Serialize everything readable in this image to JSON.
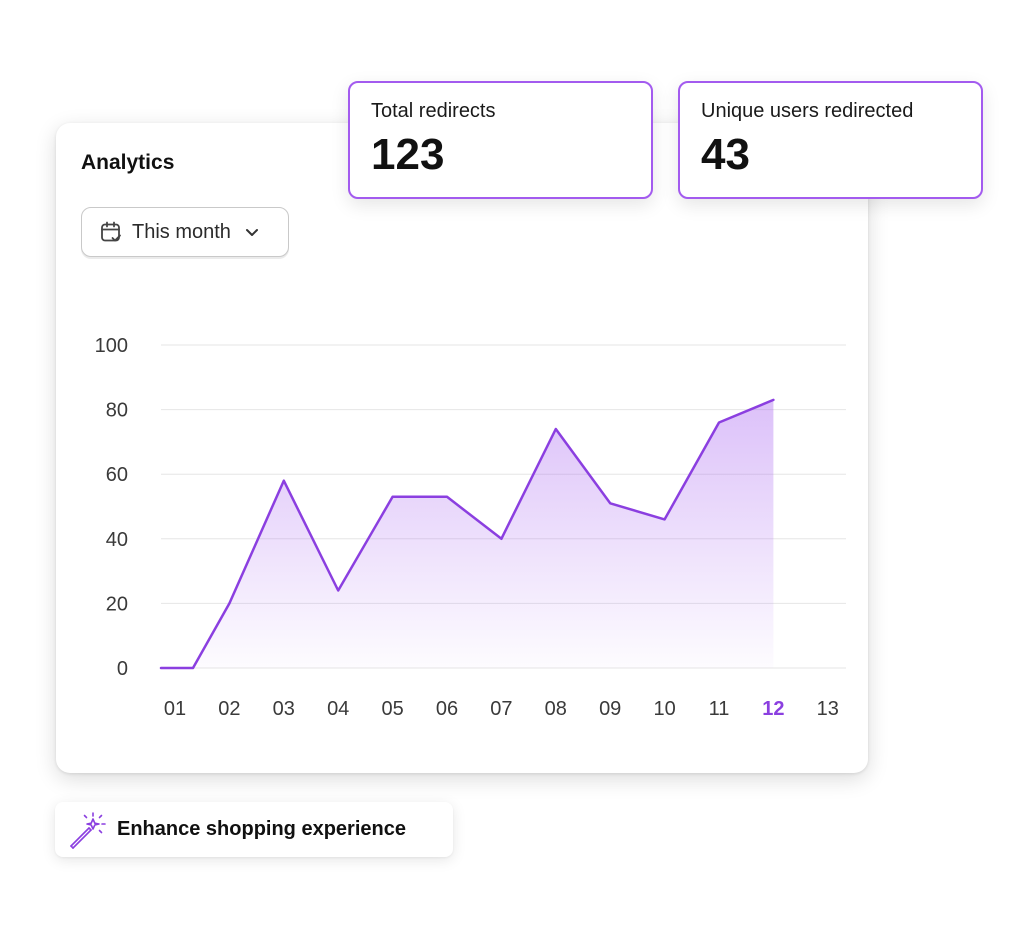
{
  "analytics_card": {
    "title": "Analytics",
    "range_selector": {
      "label": "This month",
      "icon": "calendar-check-icon",
      "dropdown_icon": "chevron-down-icon"
    }
  },
  "stats": [
    {
      "label": "Total redirects",
      "value": "123"
    },
    {
      "label": "Unique users redirected",
      "value": "43"
    }
  ],
  "enhance": {
    "label": "Enhance shopping experience",
    "icon": "magic-wand-icon"
  },
  "colors": {
    "accent": "#8b3fe0",
    "accent_border": "#a35bef",
    "grid": "#e6e6e6"
  },
  "chart_data": {
    "type": "area",
    "x": [
      "01",
      "02",
      "03",
      "04",
      "05",
      "06",
      "07",
      "08",
      "09",
      "10",
      "11",
      "12",
      "13"
    ],
    "highlighted_x": "12",
    "y_ticks": [
      "0",
      "20",
      "40",
      "60",
      "80",
      "100"
    ],
    "ylim": [
      0,
      100
    ],
    "grid": true,
    "series": [
      {
        "points": [
          [
            "01",
            0
          ],
          [
            "01",
            0
          ],
          [
            "02",
            20
          ],
          [
            "03",
            58
          ],
          [
            "04",
            24
          ],
          [
            "05",
            53
          ],
          [
            "06",
            53
          ],
          [
            "07",
            40
          ],
          [
            "08",
            74
          ],
          [
            "09",
            51
          ],
          [
            "10",
            46
          ],
          [
            "11",
            76
          ],
          [
            "12",
            83
          ]
        ]
      }
    ]
  }
}
